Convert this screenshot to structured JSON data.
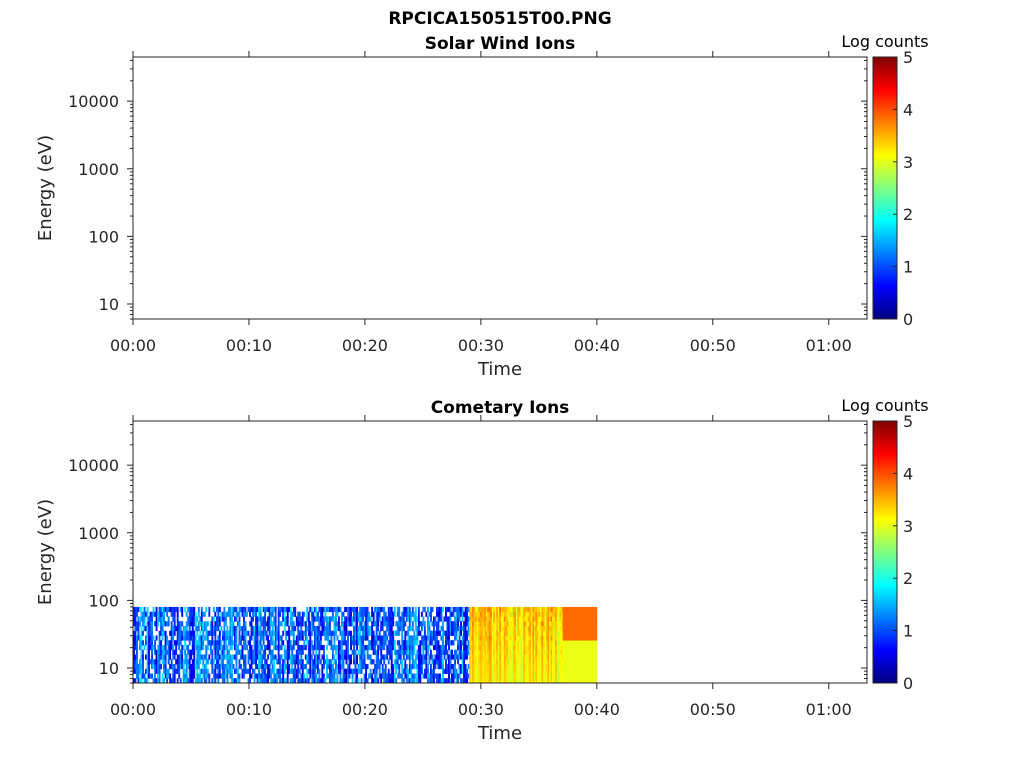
{
  "figure": {
    "title": "RPCICA150515T00.PNG"
  },
  "colormap": [
    "#00007f",
    "#0000ff",
    "#007fff",
    "#00ffff",
    "#7fff7f",
    "#ffff00",
    "#ff7f00",
    "#ff0000",
    "#7f0000"
  ],
  "chart_data": [
    {
      "type": "heatmap",
      "title": "Solar Wind Ions",
      "xlabel": "Time",
      "ylabel": "Energy (eV)",
      "x_tick_labels": [
        "00:00",
        "00:10",
        "00:20",
        "00:30",
        "00:40",
        "00:50",
        "01:00"
      ],
      "x_ticks_min": [
        0,
        10,
        20,
        30,
        40,
        50,
        60
      ],
      "xlim_min": [
        0,
        63.3
      ],
      "yscale": "log",
      "ylim": [
        6,
        45000
      ],
      "y_tick_labels": [
        "10",
        "100",
        "1000",
        "10000"
      ],
      "y_ticks": [
        10,
        100,
        1000,
        10000
      ],
      "colorbar": {
        "label": "Log counts",
        "range": [
          0,
          5
        ],
        "tick_labels": [
          "0",
          "1",
          "2",
          "3",
          "4",
          "5"
        ]
      },
      "data_present": false
    },
    {
      "type": "heatmap",
      "title": "Cometary Ions",
      "xlabel": "Time",
      "ylabel": "Energy (eV)",
      "x_tick_labels": [
        "00:00",
        "00:10",
        "00:20",
        "00:30",
        "00:40",
        "00:50",
        "01:00"
      ],
      "x_ticks_min": [
        0,
        10,
        20,
        30,
        40,
        50,
        60
      ],
      "xlim_min": [
        0,
        63.3
      ],
      "yscale": "log",
      "ylim": [
        6,
        45000
      ],
      "y_tick_labels": [
        "10",
        "100",
        "1000",
        "10000"
      ],
      "y_ticks": [
        10,
        100,
        1000,
        10000
      ],
      "colorbar": {
        "label": "Log counts",
        "range": [
          0,
          5
        ],
        "tick_labels": [
          "0",
          "1",
          "2",
          "3",
          "4",
          "5"
        ]
      },
      "data_present": true,
      "energy_range_eV": [
        6,
        80
      ],
      "time_range_min": [
        0,
        40
      ],
      "segments": [
        {
          "time_min": [
            0,
            29
          ],
          "log_counts_range": [
            0,
            2
          ],
          "description": "sparse low counts"
        },
        {
          "time_min": [
            29,
            37
          ],
          "log_counts_range": [
            2.5,
            4
          ],
          "description": "elevated counts"
        },
        {
          "time_min": [
            37,
            40
          ],
          "log_counts_range": [
            2.5,
            4
          ],
          "description": "steady elevated counts"
        }
      ]
    }
  ]
}
